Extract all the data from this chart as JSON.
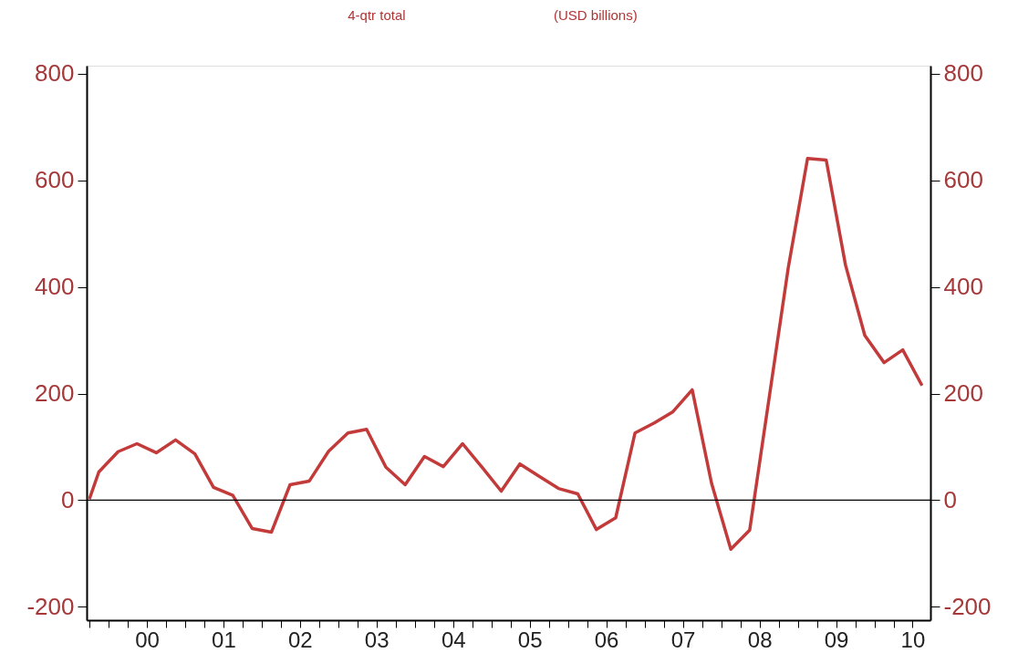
{
  "chart_data": {
    "type": "line",
    "title": "4-qtr total",
    "subtitle": "(USD billions)",
    "x": [
      "1999-10-01",
      "1999-11-15",
      "2000-02-15",
      "2000-05-15",
      "2000-08-15",
      "2000-11-15",
      "2001-02-15",
      "2001-05-15",
      "2001-08-15",
      "2001-11-15",
      "2002-02-15",
      "2002-05-15",
      "2002-08-15",
      "2002-11-15",
      "2003-02-15",
      "2003-05-15",
      "2003-08-15",
      "2003-11-15",
      "2004-02-15",
      "2004-05-15",
      "2004-08-15",
      "2004-11-15",
      "2005-02-15",
      "2005-05-15",
      "2005-08-15",
      "2005-11-15",
      "2006-02-15",
      "2006-05-15",
      "2006-08-15",
      "2006-11-15",
      "2007-02-15",
      "2007-05-15",
      "2007-08-15",
      "2007-11-15",
      "2008-02-15",
      "2008-05-15",
      "2008-08-15",
      "2008-11-15",
      "2009-02-15",
      "2009-05-15",
      "2009-08-15",
      "2009-11-15",
      "2010-02-15",
      "2010-05-15",
      "2010-08-15"
    ],
    "series": [
      {
        "color": "#c23b3a",
        "axis": "y",
        "values": [
          2,
          53,
          91,
          106,
          89,
          113,
          87,
          24,
          9,
          -53,
          -60,
          29,
          36,
          92,
          126,
          133,
          62,
          29,
          82,
          63,
          106,
          62,
          17,
          68,
          45,
          22,
          12,
          -55,
          -33,
          126,
          145,
          166,
          207,
          32,
          -92,
          -56,
          190,
          436,
          641,
          638,
          441,
          309,
          258,
          282,
          215
        ]
      }
    ],
    "xlim": [
      "1999-09-18",
      "2010-09-24"
    ],
    "xticks": [
      {
        "value": "1999-10-01",
        "label": null
      },
      {
        "value": "2000-01-01",
        "label": null
      },
      {
        "value": "2000-04-01",
        "label": null
      },
      {
        "value": "2000-07-01",
        "label": "00"
      },
      {
        "value": "2000-10-01",
        "label": null
      },
      {
        "value": "2001-01-01",
        "label": null
      },
      {
        "value": "2001-04-01",
        "label": null
      },
      {
        "value": "2001-07-01",
        "label": "01"
      },
      {
        "value": "2001-10-01",
        "label": null
      },
      {
        "value": "2002-01-01",
        "label": null
      },
      {
        "value": "2002-04-01",
        "label": null
      },
      {
        "value": "2002-07-01",
        "label": "02"
      },
      {
        "value": "2002-10-01",
        "label": null
      },
      {
        "value": "2003-01-01",
        "label": null
      },
      {
        "value": "2003-04-01",
        "label": null
      },
      {
        "value": "2003-07-01",
        "label": "03"
      },
      {
        "value": "2003-10-01",
        "label": null
      },
      {
        "value": "2004-01-01",
        "label": null
      },
      {
        "value": "2004-04-01",
        "label": null
      },
      {
        "value": "2004-07-01",
        "label": "04"
      },
      {
        "value": "2004-10-01",
        "label": null
      },
      {
        "value": "2005-01-01",
        "label": null
      },
      {
        "value": "2005-04-01",
        "label": null
      },
      {
        "value": "2005-07-01",
        "label": "05"
      },
      {
        "value": "2005-10-01",
        "label": null
      },
      {
        "value": "2006-01-01",
        "label": null
      },
      {
        "value": "2006-04-01",
        "label": null
      },
      {
        "value": "2006-07-01",
        "label": "06"
      },
      {
        "value": "2006-10-01",
        "label": null
      },
      {
        "value": "2007-01-01",
        "label": null
      },
      {
        "value": "2007-04-01",
        "label": null
      },
      {
        "value": "2007-07-01",
        "label": "07"
      },
      {
        "value": "2007-10-01",
        "label": null
      },
      {
        "value": "2008-01-01",
        "label": null
      },
      {
        "value": "2008-04-01",
        "label": null
      },
      {
        "value": "2008-07-01",
        "label": "08"
      },
      {
        "value": "2008-10-01",
        "label": null
      },
      {
        "value": "2009-01-01",
        "label": null
      },
      {
        "value": "2009-04-01",
        "label": null
      },
      {
        "value": "2009-07-01",
        "label": "09"
      },
      {
        "value": "2009-10-01",
        "label": null
      },
      {
        "value": "2010-01-01",
        "label": null
      },
      {
        "value": "2010-04-01",
        "label": null
      },
      {
        "value": "2010-07-01",
        "label": "10"
      }
    ],
    "ylim": [
      -225,
      815
    ],
    "yticks": [
      -200,
      0,
      200,
      400,
      600,
      800
    ],
    "y2lim": [
      -225,
      815
    ],
    "y2ticks": [
      -200,
      0,
      200,
      400,
      600,
      800
    ],
    "ref_lines": [
      {
        "axis": "y",
        "value": 0,
        "color": "#000000"
      }
    ],
    "grid": false,
    "marker": "none",
    "line_style": "solid"
  }
}
